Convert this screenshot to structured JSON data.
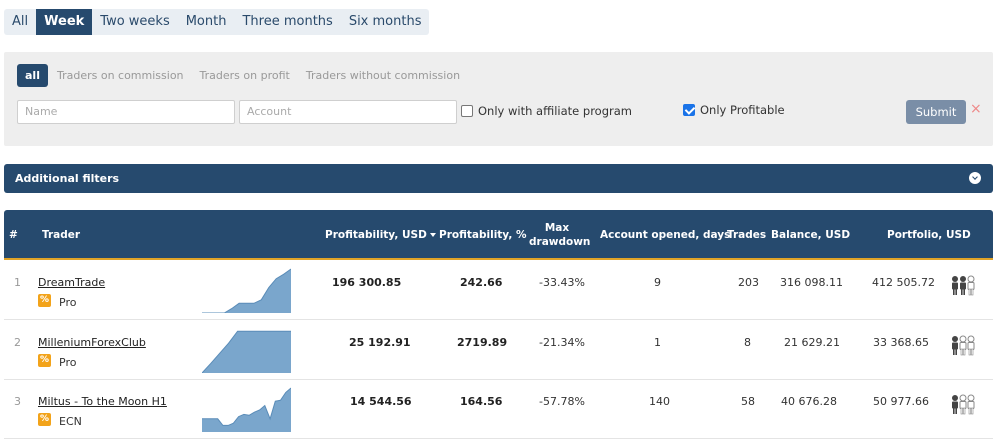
{
  "period_tabs": [
    {
      "label": "All",
      "active": false
    },
    {
      "label": "Week",
      "active": true
    },
    {
      "label": "Two weeks",
      "active": false
    },
    {
      "label": "Month",
      "active": false
    },
    {
      "label": "Three months",
      "active": false
    },
    {
      "label": "Six months",
      "active": false
    }
  ],
  "filters": {
    "type_tabs": [
      {
        "label": "all",
        "active": true
      },
      {
        "label": "Traders on commission",
        "active": false
      },
      {
        "label": "Traders on profit",
        "active": false
      },
      {
        "label": "Traders without commission",
        "active": false
      }
    ],
    "name_placeholder": "Name",
    "account_placeholder": "Account",
    "affiliate_label": "Only with affiliate program",
    "affiliate_checked": false,
    "profitable_label": "Only Profitable",
    "profitable_checked": true,
    "submit_label": "Submit",
    "clear_icon": "×"
  },
  "additional_filters_label": "Additional filters",
  "table": {
    "headers": {
      "rank": "#",
      "trader": "Trader",
      "profit_usd": "Profitability, USD",
      "profit_pct": "Profitability, %",
      "max_dd_line1": "Max",
      "max_dd_line2": "drawdown",
      "account_opened": "Account opened, days",
      "trades": "Trades",
      "balance": "Balance, USD",
      "portfolio": "Portfolio, USD"
    },
    "rows": [
      {
        "rank": "1",
        "name": "DreamTrade",
        "badge": "%",
        "tier": "Pro",
        "profit_usd": "196 300.85",
        "profit_pct": "242.66",
        "max_dd": "-33.43%",
        "days": "9",
        "trades": "203",
        "balance": "316 098.11",
        "portfolio": "412 505.72",
        "spark": [
          0,
          0,
          0,
          0,
          10,
          22,
          22,
          22,
          30,
          58,
          78,
          88,
          100
        ]
      },
      {
        "rank": "2",
        "name": "MilleniumForexClub",
        "badge": "%",
        "tier": "Pro",
        "profit_usd": "25 192.91",
        "profit_pct": "2719.89",
        "max_dd": "-21.34%",
        "days": "1",
        "trades": "8",
        "balance": "21 629.21",
        "portfolio": "33 368.65",
        "spark": [
          0,
          22,
          45,
          68,
          95,
          95,
          95,
          95,
          95,
          95,
          95
        ]
      },
      {
        "rank": "3",
        "name": "Miltus - To the Moon H1",
        "badge": "%",
        "tier": "ECN",
        "profit_usd": "14 544.56",
        "profit_pct": "164.56",
        "max_dd": "-57.78%",
        "days": "140",
        "trades": "58",
        "balance": "40 676.28",
        "portfolio": "50 977.66",
        "spark": [
          30,
          30,
          30,
          30,
          15,
          15,
          20,
          35,
          40,
          38,
          45,
          50,
          60,
          30,
          70,
          72,
          90,
          100
        ]
      }
    ]
  },
  "colors": {
    "navy": "#264a6e",
    "accent": "#e0a428",
    "spark_fill": "#7aa6cc",
    "spark_line": "#5a8cb8"
  }
}
